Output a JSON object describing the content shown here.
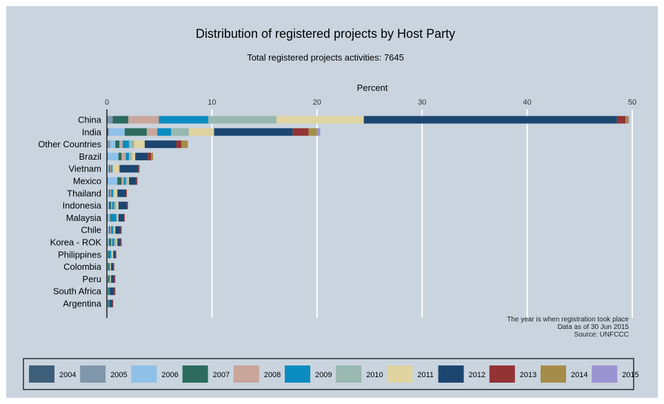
{
  "chart_data": {
    "type": "bar",
    "orientation": "horizontal",
    "stacked": true,
    "title": "Distribution of registered projects by Host Party",
    "subtitle": "Total registered projects activities: 7645",
    "xlabel": "Percent",
    "xlim": [
      0,
      50
    ],
    "xticks": [
      "0",
      "10",
      "20",
      "30",
      "40",
      "50"
    ],
    "grid": "vertical",
    "legend_position": "bottom",
    "notes": [
      "The year is when registration took place",
      "Data as of 30 Jun 2015",
      "Source: UNFCCC"
    ],
    "categories": [
      "China",
      "India",
      "Other Countries",
      "Brazil",
      "Vietnam",
      "Mexico",
      "Thailand",
      "Indonesia",
      "Malaysia",
      "Chile",
      "Korea - ROK",
      "Philippines",
      "Colombia",
      "Peru",
      "South Africa",
      "Argentina"
    ],
    "series": [
      {
        "name": "2004",
        "color": "#3d5f7a",
        "values": [
          0.05,
          0.1,
          0.0,
          0.0,
          0.0,
          0.0,
          0.0,
          0.0,
          0.0,
          0.0,
          0.0,
          0.0,
          0.0,
          0.0,
          0.0,
          0.0
        ]
      },
      {
        "name": "2005",
        "color": "#7f96ab",
        "values": [
          0.5,
          0.1,
          0.3,
          0.1,
          0.0,
          0.1,
          0.0,
          0.0,
          0.1,
          0.0,
          0.1,
          0.0,
          0.0,
          0.0,
          0.0,
          0.0
        ]
      },
      {
        "name": "2006",
        "color": "#8fc1e8",
        "values": [
          0.0,
          1.5,
          0.5,
          1.0,
          0.2,
          0.9,
          0.2,
          0.2,
          0.2,
          0.2,
          0.1,
          0.1,
          0.1,
          0.1,
          0.1,
          0.1
        ]
      },
      {
        "name": "2007",
        "color": "#2c6b5e",
        "values": [
          1.5,
          2.1,
          0.4,
          0.3,
          0.1,
          0.4,
          0.1,
          0.2,
          0.1,
          0.1,
          0.2,
          0.1,
          0.1,
          0.1,
          0.1,
          0.1
        ]
      },
      {
        "name": "2008",
        "color": "#c9a59a",
        "values": [
          2.9,
          1.0,
          0.3,
          0.4,
          0.1,
          0.2,
          0.1,
          0.1,
          0.0,
          0.1,
          0.1,
          0.0,
          0.0,
          0.0,
          0.0,
          0.0
        ]
      },
      {
        "name": "2009",
        "color": "#0a8cc1",
        "values": [
          4.7,
          1.3,
          0.6,
          0.3,
          0.1,
          0.2,
          0.2,
          0.2,
          0.5,
          0.2,
          0.2,
          0.2,
          0.1,
          0.1,
          0.1,
          0.1
        ]
      },
      {
        "name": "2010",
        "color": "#98b8b0",
        "values": [
          6.5,
          1.7,
          0.5,
          0.3,
          0.1,
          0.2,
          0.1,
          0.2,
          0.1,
          0.1,
          0.2,
          0.1,
          0.0,
          0.0,
          0.0,
          0.0
        ]
      },
      {
        "name": "2011",
        "color": "#dfd3a0",
        "values": [
          8.3,
          2.4,
          1.0,
          0.3,
          0.6,
          0.1,
          0.3,
          0.2,
          0.1,
          0.1,
          0.1,
          0.1,
          0.1,
          0.1,
          0.0,
          0.0
        ]
      },
      {
        "name": "2012",
        "color": "#1c4670",
        "values": [
          24.1,
          7.5,
          3.0,
          1.2,
          1.8,
          0.7,
          0.8,
          0.8,
          0.5,
          0.5,
          0.3,
          0.2,
          0.2,
          0.3,
          0.4,
          0.2
        ]
      },
      {
        "name": "2013",
        "color": "#933336",
        "values": [
          0.8,
          1.5,
          0.5,
          0.3,
          0.1,
          0.1,
          0.1,
          0.1,
          0.1,
          0.1,
          0.1,
          0.1,
          0.1,
          0.1,
          0.1,
          0.1
        ]
      },
      {
        "name": "2014",
        "color": "#a58c4a",
        "values": [
          0.3,
          0.8,
          0.6,
          0.2,
          0.0,
          0.0,
          0.0,
          0.0,
          0.0,
          0.0,
          0.0,
          0.0,
          0.0,
          0.0,
          0.0,
          0.0
        ]
      },
      {
        "name": "2015",
        "color": "#9c93d1",
        "values": [
          0.05,
          0.3,
          0.0,
          0.0,
          0.0,
          0.0,
          0.0,
          0.0,
          0.0,
          0.0,
          0.0,
          0.0,
          0.0,
          0.0,
          0.0,
          0.0
        ]
      }
    ]
  }
}
